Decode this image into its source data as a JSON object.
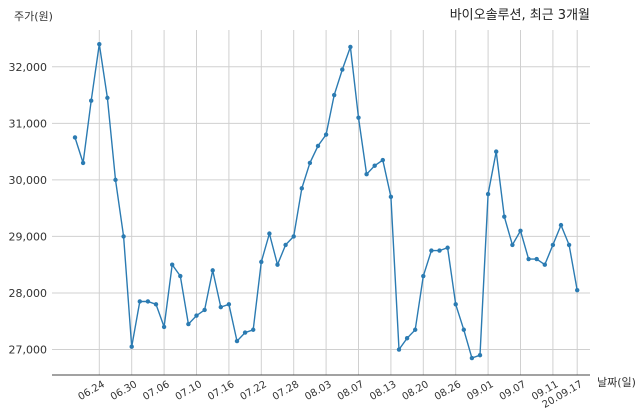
{
  "chart_data": {
    "type": "line",
    "title": "바이오솔루션, 최근 3개월",
    "ylabel": "주가(원)",
    "xlabel": "날짜(일)",
    "ylim": [
      26550,
      32650
    ],
    "y_ticks": [
      27000,
      28000,
      29000,
      30000,
      31000,
      32000
    ],
    "y_tick_labels": [
      "27,000",
      "28,000",
      "29,000",
      "30,000",
      "31,000",
      "32,000"
    ],
    "x_tick_labels": [
      "06.24",
      "06.30",
      "07.06",
      "07.10",
      "07.16",
      "07.22",
      "07.28",
      "08.03",
      "08.07",
      "08.13",
      "08.20",
      "08.26",
      "09.01",
      "09.07",
      "09.11",
      "20.09.17"
    ],
    "x_tick_index": [
      3,
      7,
      11,
      15,
      19,
      23,
      27,
      31,
      35,
      39,
      43,
      47,
      51,
      55,
      59,
      62
    ],
    "grid": true,
    "series": [
      {
        "color": "#2b7bb2",
        "values": [
          30750,
          30300,
          31400,
          32400,
          31450,
          30000,
          29000,
          27050,
          27850,
          27850,
          27800,
          27400,
          28500,
          28300,
          27450,
          27600,
          27700,
          28400,
          27750,
          27800,
          27150,
          27300,
          27350,
          28550,
          29050,
          28500,
          28850,
          29000,
          29850,
          30300,
          30600,
          30800,
          31500,
          31950,
          32350,
          31100,
          30100,
          30250,
          30350,
          29700,
          27000,
          27200,
          27350,
          28300,
          28750,
          28750,
          28800,
          27800,
          27350,
          26850,
          26900,
          29750,
          30500,
          29350,
          28850,
          29100,
          28600,
          28600,
          28500,
          28850,
          29200,
          28850,
          28050
        ]
      }
    ]
  }
}
